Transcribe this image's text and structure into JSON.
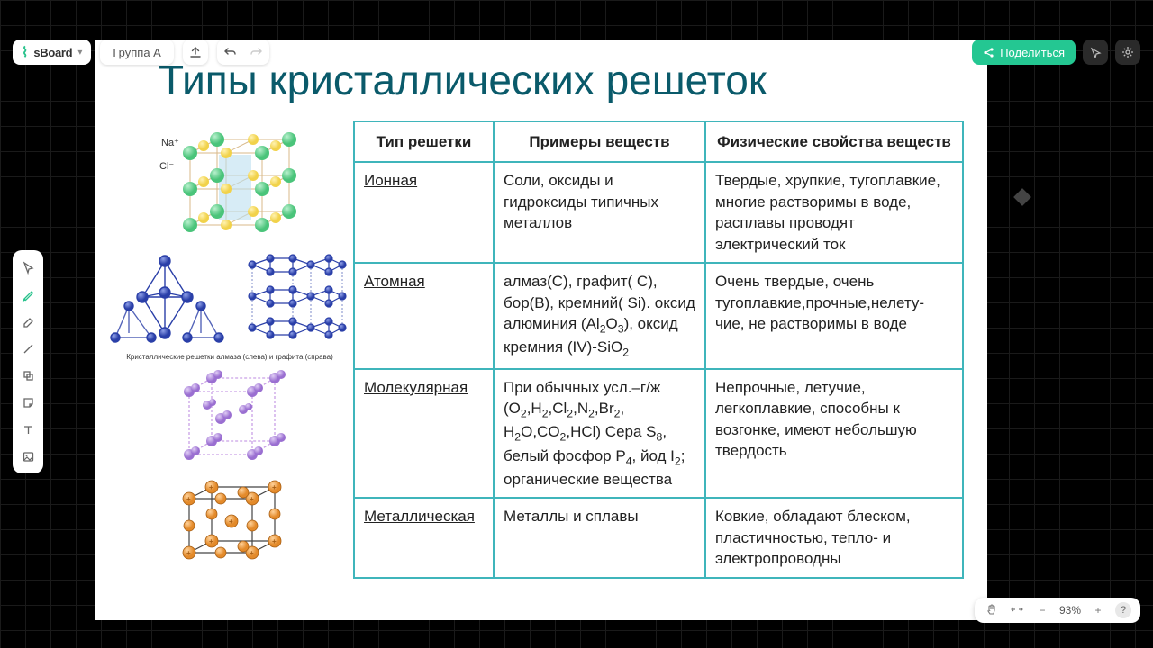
{
  "app": {
    "logo_symbol": "⌇",
    "logo_text": "sBoard",
    "doc_name": "Группа А"
  },
  "topbar_right": {
    "share_label": "Поделиться"
  },
  "zoom": {
    "level": "93%"
  },
  "slide": {
    "title": "Типы кристаллических решеток",
    "diagram_caption": "Кристаллические решетки алмаза (слева) и графита (справа)",
    "ionic_labels": {
      "na": "Na⁺",
      "cl": "Cl⁻"
    },
    "table": {
      "headers": [
        "Тип решетки",
        "Примеры веществ",
        "Физические свойства веществ"
      ],
      "rows": [
        {
          "type": "Ионная",
          "examples": "Соли, оксиды и гидроксиды типичных металлов",
          "props": "Твердые, хрупкие, тугоплавкие, многие растворимы в воде, расплавы проводят электрический ток"
        },
        {
          "type": "Атомная",
          "examples_html": "алмаз(С), графит( С), бор(В), кремний( Si). оксид алюминия (Al<sub>2</sub>O<sub>3</sub>), оксид кремния (IV)-SiO<sub>2</sub>",
          "props": "Очень твердые, очень тугоплавкие,прочные,нелету-чие, не растворимы в воде"
        },
        {
          "type": "Молекулярная",
          "examples_html": "При обычных усл.–г/ж (O<sub>2</sub>,H<sub>2</sub>,Cl<sub>2</sub>,N<sub>2</sub>,Br<sub>2</sub>, H<sub>2</sub>O,CO<sub>2</sub>,HCl) Сера S<sub>8</sub>, белый фосфор P<sub>4</sub>, йод I<sub>2</sub>; органические вещества",
          "props": "Непрочные, летучие, легкоплавкие, способны к возгонке, имеют небольшую твердость"
        },
        {
          "type": "Металлическая",
          "examples": "Металлы и сплавы",
          "props": "Ковкие, обладают блеском, пластичностью, тепло- и электропроводны"
        }
      ]
    },
    "colors": {
      "na": "#f1d24a",
      "cl": "#4ac47a",
      "atomic": "#2a3fa8",
      "mol": "#9a6fd1",
      "mol_cube": "#c9a0e6",
      "metal": "#e38a2a",
      "table_border": "#3fb5bb",
      "title": "#0a5a6a"
    }
  }
}
